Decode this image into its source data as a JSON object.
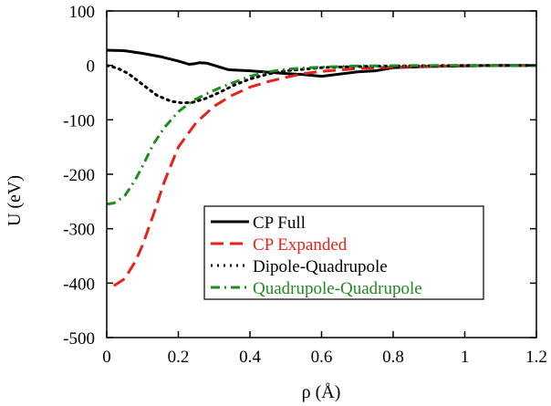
{
  "chart_data": {
    "type": "line",
    "xlabel": "ρ (Å)",
    "ylabel": "U (eV)",
    "xlim": [
      0,
      1.2
    ],
    "ylim": [
      -500,
      100
    ],
    "x_ticks": [
      0,
      0.2,
      0.4,
      0.6,
      0.8,
      1,
      1.2
    ],
    "x_tick_labels": [
      "0",
      "0.2",
      "0.4",
      "0.6",
      "0.8",
      "1",
      "1.2"
    ],
    "y_ticks": [
      100,
      0,
      -100,
      -200,
      -300,
      -400,
      -500
    ],
    "y_tick_labels": [
      "100",
      "0",
      "-100",
      "-200",
      "-300",
      "-400",
      "-500"
    ],
    "grid": false,
    "legend_position": "lower-right",
    "series": [
      {
        "name": "CP Full",
        "color": "#000000",
        "dash": "solid",
        "x": [
          0,
          0.05,
          0.1,
          0.15,
          0.2,
          0.23,
          0.245,
          0.26,
          0.28,
          0.3,
          0.32,
          0.34,
          0.4,
          0.5,
          0.55,
          0.6,
          0.7,
          0.75,
          0.8,
          0.9,
          1.0,
          1.1,
          1.2
        ],
        "y": [
          28,
          27,
          22,
          16,
          8,
          2,
          3,
          5,
          4,
          0,
          -4,
          -8,
          -10,
          -15,
          -17,
          -20,
          -12,
          -10,
          -4,
          -2,
          -1,
          0,
          0
        ]
      },
      {
        "name": "CP Expanded",
        "color": "#e8211a",
        "dash": "dashed",
        "x": [
          0.02,
          0.05,
          0.08,
          0.1,
          0.13,
          0.16,
          0.2,
          0.25,
          0.3,
          0.35,
          0.4,
          0.45,
          0.5,
          0.55,
          0.6,
          0.7,
          0.8,
          0.9,
          1.0,
          1.1,
          1.2
        ],
        "y": [
          -405,
          -392,
          -360,
          -330,
          -275,
          -215,
          -150,
          -105,
          -75,
          -55,
          -40,
          -30,
          -22,
          -15,
          -11,
          -6,
          -3,
          -1.5,
          -0.8,
          -0.3,
          0
        ]
      },
      {
        "name": "Dipole-Quadrupole",
        "color": "#000000",
        "dash": "dotted",
        "x": [
          0,
          0.03,
          0.06,
          0.1,
          0.14,
          0.18,
          0.21,
          0.24,
          0.28,
          0.32,
          0.36,
          0.4,
          0.45,
          0.5,
          0.6,
          0.7,
          0.8,
          1.0,
          1.2
        ],
        "y": [
          0,
          -5,
          -15,
          -35,
          -55,
          -66,
          -69,
          -68,
          -60,
          -48,
          -35,
          -25,
          -16,
          -10,
          -4,
          -2,
          -1,
          0,
          0
        ]
      },
      {
        "name": "Quadrupole-Quadrupole",
        "color": "#1f8c1f",
        "dash": "dashdot",
        "x": [
          0.0,
          0.02,
          0.05,
          0.08,
          0.1,
          0.13,
          0.16,
          0.2,
          0.24,
          0.28,
          0.32,
          0.36,
          0.4,
          0.45,
          0.5,
          0.6,
          0.7,
          0.8,
          1.0,
          1.2
        ],
        "y": [
          -255,
          -253,
          -240,
          -210,
          -185,
          -145,
          -115,
          -85,
          -65,
          -52,
          -40,
          -30,
          -20,
          -12,
          -7,
          -3,
          -1,
          -0.5,
          0,
          0
        ]
      }
    ]
  }
}
